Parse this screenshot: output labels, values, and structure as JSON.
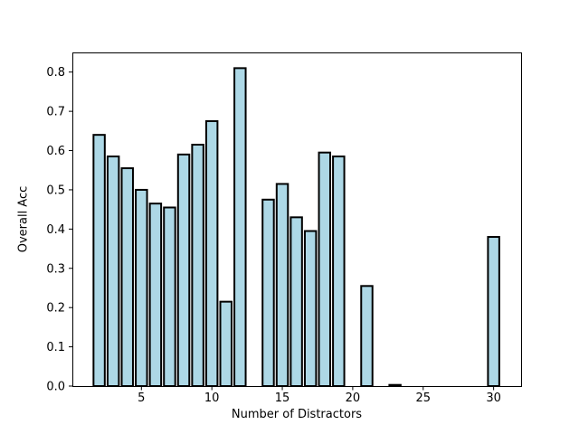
{
  "chart_data": {
    "type": "bar",
    "title": "",
    "xlabel": "Number of Distractors",
    "ylabel": "Overall Acc",
    "x": [
      2,
      3,
      4,
      5,
      6,
      7,
      8,
      9,
      10,
      11,
      12,
      14,
      15,
      16,
      17,
      18,
      19,
      21,
      23,
      30
    ],
    "values": [
      0.64,
      0.585,
      0.555,
      0.5,
      0.465,
      0.455,
      0.59,
      0.615,
      0.675,
      0.215,
      0.81,
      0.475,
      0.515,
      0.43,
      0.395,
      0.595,
      0.585,
      0.255,
      0.003,
      0.38
    ],
    "bar_width_units": 0.8,
    "xlim": [
      0.1,
      31.95
    ],
    "ylim": [
      0,
      0.85
    ],
    "xtick_labels": [
      "5",
      "10",
      "15",
      "20",
      "25",
      "30"
    ],
    "ytick_labels": [
      "0.0",
      "0.1",
      "0.2",
      "0.3",
      "0.4",
      "0.5",
      "0.6",
      "0.7",
      "0.8"
    ],
    "grid": false,
    "legend": null,
    "colors": {
      "bar_fill": "#ADD8E6",
      "bar_edge": "#000000",
      "spine": "#000000",
      "tick": "#000000",
      "text": "#000000",
      "background": "#FFFFFF"
    }
  }
}
